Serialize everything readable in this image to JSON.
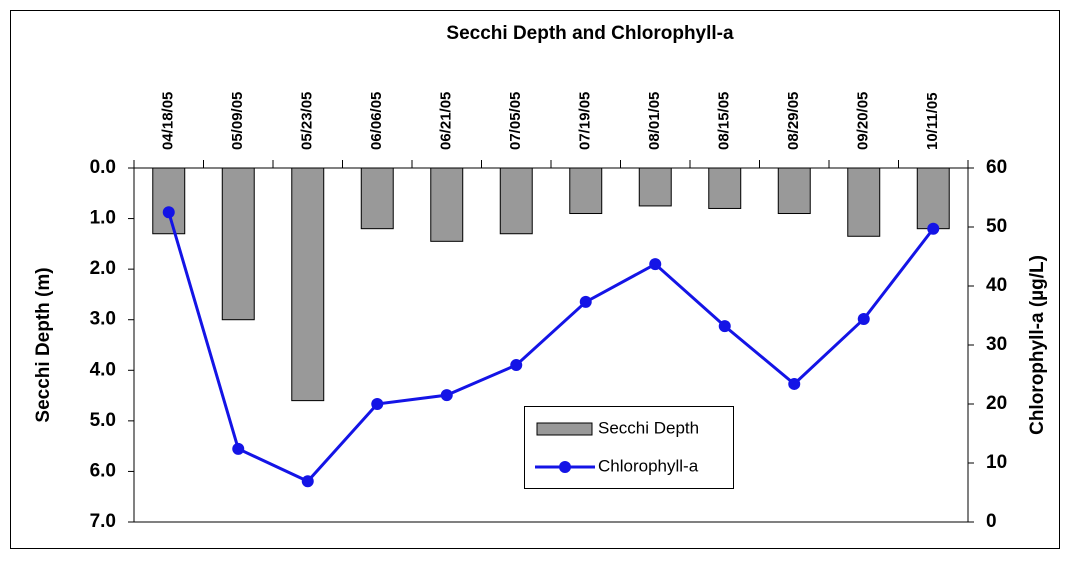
{
  "chart_data": {
    "type": "bar-line",
    "title": "Secchi Depth and Chlorophyll-a",
    "y_label": "Secchi Depth (m)",
    "y2_label": "Chlorophyll-a (µg/L)",
    "categories": [
      "04/18/05",
      "05/09/05",
      "05/23/05",
      "06/06/05",
      "06/21/05",
      "07/05/05",
      "07/19/05",
      "08/01/05",
      "08/15/05",
      "08/29/05",
      "09/20/05",
      "10/11/05"
    ],
    "series": [
      {
        "name": "Secchi Depth",
        "color": "#999999",
        "type": "bar",
        "values": [
          1.3,
          3.0,
          4.6,
          1.2,
          1.45,
          1.3,
          0.9,
          0.75,
          0.8,
          0.9,
          1.35,
          1.2
        ]
      },
      {
        "name": "Chlorophyll-a",
        "color": "#1414e6",
        "type": "line",
        "axis": "y2",
        "values": [
          52.5,
          12.4,
          6.9,
          20,
          21.5,
          26.6,
          37.3,
          43.7,
          33.2,
          23.4,
          34.4,
          49.7
        ]
      }
    ],
    "ylim": [
      0,
      7
    ],
    "y_inverted": true,
    "yticks": [
      {
        "value": 0,
        "label": "0.0"
      },
      {
        "value": 1,
        "label": "1.0"
      },
      {
        "value": 2,
        "label": "2.0"
      },
      {
        "value": 3,
        "label": "3.0"
      },
      {
        "value": 4,
        "label": "4.0"
      },
      {
        "value": 5,
        "label": "5.0"
      },
      {
        "value": 6,
        "label": "6.0"
      },
      {
        "value": 7,
        "label": "7.0"
      }
    ],
    "y2lim": [
      0,
      60
    ],
    "y2ticks": [
      0,
      10,
      20,
      30,
      40,
      50,
      60
    ]
  }
}
